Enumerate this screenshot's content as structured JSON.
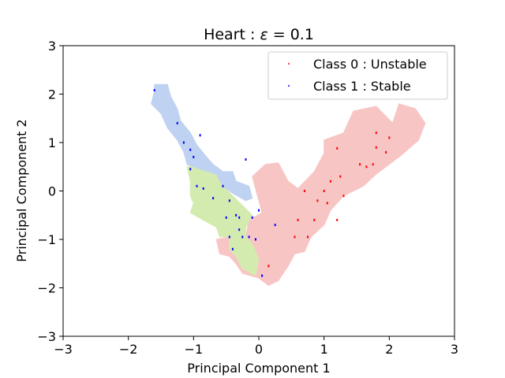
{
  "chart_data": {
    "type": "scatter",
    "title": "Heart : ε = 0.1",
    "title_prefix": "Heart : ",
    "title_symbol": "ε",
    "title_suffix": " = 0.1",
    "xlabel": "Principal Component 1",
    "ylabel": "Principal Component 2",
    "xlim": [
      -3,
      3
    ],
    "ylim": [
      -3,
      3
    ],
    "xticks": [
      -3,
      -2,
      -1,
      0,
      1,
      2,
      3
    ],
    "yticks": [
      -3,
      -2,
      -1,
      0,
      1,
      2,
      3
    ],
    "xtick_labels": [
      "−3",
      "−2",
      "−1",
      "0",
      "1",
      "2",
      "3"
    ],
    "ytick_labels": [
      "−3",
      "−2",
      "−1",
      "0",
      "1",
      "2",
      "3"
    ],
    "grid": false,
    "legend_position": "top-right",
    "series": [
      {
        "name": "Class 0 : Unstable",
        "color": "#ff0000",
        "points": [
          [
            1.2,
            0.88
          ],
          [
            1.65,
            0.5
          ],
          [
            1.8,
            0.9
          ],
          [
            1.95,
            0.8
          ],
          [
            2.0,
            1.1
          ],
          [
            1.75,
            0.55
          ],
          [
            1.25,
            0.3
          ],
          [
            1.1,
            0.2
          ],
          [
            0.85,
            -0.6
          ],
          [
            1.2,
            -0.6
          ],
          [
            1.05,
            -0.25
          ],
          [
            1.0,
            0.0
          ],
          [
            0.6,
            -0.6
          ],
          [
            0.55,
            -0.95
          ],
          [
            0.75,
            -0.95
          ],
          [
            0.15,
            -1.55
          ],
          [
            0.9,
            -0.2
          ],
          [
            1.8,
            1.2
          ],
          [
            1.55,
            0.55
          ],
          [
            0.7,
            0.0
          ],
          [
            1.3,
            -0.1
          ]
        ]
      },
      {
        "name": "Class 1 : Stable",
        "color": "#0000ff",
        "points": [
          [
            -1.6,
            2.08
          ],
          [
            -1.25,
            1.4
          ],
          [
            -1.15,
            1.0
          ],
          [
            -1.05,
            0.85
          ],
          [
            -0.9,
            1.15
          ],
          [
            -1.0,
            0.7
          ],
          [
            -1.05,
            0.45
          ],
          [
            -0.95,
            0.1
          ],
          [
            -0.85,
            0.05
          ],
          [
            -0.7,
            -0.15
          ],
          [
            -0.5,
            -0.55
          ],
          [
            -0.45,
            -0.95
          ],
          [
            -0.3,
            -0.8
          ],
          [
            -0.2,
            0.65
          ],
          [
            -0.15,
            -0.95
          ],
          [
            -0.1,
            -0.55
          ],
          [
            -0.05,
            -1.0
          ],
          [
            0.0,
            -0.4
          ],
          [
            -0.25,
            -0.95
          ],
          [
            0.05,
            -1.75
          ],
          [
            0.25,
            -0.7
          ],
          [
            -0.4,
            -1.2
          ],
          [
            -0.3,
            -0.55
          ],
          [
            -0.55,
            0.1
          ],
          [
            -0.35,
            -0.5
          ],
          [
            -0.45,
            -0.2
          ]
        ]
      }
    ],
    "regions": [
      {
        "label": "Unstable region",
        "color": "#f8c5c5",
        "polygon": [
          [
            0.0,
            -1.8
          ],
          [
            -0.25,
            -1.7
          ],
          [
            -0.35,
            -1.5
          ],
          [
            -0.45,
            -1.35
          ],
          [
            -0.6,
            -1.3
          ],
          [
            -0.65,
            -1.0
          ],
          [
            -0.45,
            -0.95
          ],
          [
            -0.2,
            -0.95
          ],
          [
            -0.15,
            -0.6
          ],
          [
            0.05,
            -0.45
          ],
          [
            0.0,
            -0.2
          ],
          [
            -0.1,
            0.3
          ],
          [
            0.1,
            0.55
          ],
          [
            0.3,
            0.58
          ],
          [
            0.45,
            0.2
          ],
          [
            0.6,
            0.05
          ],
          [
            0.85,
            0.4
          ],
          [
            1.0,
            0.78
          ],
          [
            1.0,
            1.05
          ],
          [
            1.3,
            1.2
          ],
          [
            1.45,
            1.65
          ],
          [
            1.8,
            1.75
          ],
          [
            2.05,
            1.4
          ],
          [
            2.15,
            1.8
          ],
          [
            2.4,
            1.7
          ],
          [
            2.55,
            1.4
          ],
          [
            2.45,
            1.05
          ],
          [
            2.15,
            0.7
          ],
          [
            1.8,
            0.35
          ],
          [
            1.6,
            0.1
          ],
          [
            1.3,
            -0.1
          ],
          [
            1.1,
            -0.4
          ],
          [
            1.0,
            -0.7
          ],
          [
            0.8,
            -0.95
          ],
          [
            0.7,
            -1.25
          ],
          [
            0.55,
            -1.3
          ],
          [
            0.45,
            -1.55
          ],
          [
            0.3,
            -1.85
          ],
          [
            0.15,
            -1.95
          ]
        ]
      },
      {
        "label": "Stable region (green)",
        "color": "#d4ebb0",
        "polygon": [
          [
            -0.05,
            -1.75
          ],
          [
            -0.25,
            -1.6
          ],
          [
            -0.35,
            -1.35
          ],
          [
            -0.45,
            -1.2
          ],
          [
            -0.45,
            -0.95
          ],
          [
            -0.6,
            -0.95
          ],
          [
            -0.65,
            -0.75
          ],
          [
            -0.85,
            -0.6
          ],
          [
            -1.05,
            -0.45
          ],
          [
            -1.0,
            -0.25
          ],
          [
            -1.05,
            -0.1
          ],
          [
            -1.05,
            0.2
          ],
          [
            -1.1,
            0.5
          ],
          [
            -0.9,
            0.55
          ],
          [
            -0.6,
            0.4
          ],
          [
            -0.55,
            0.1
          ],
          [
            -0.4,
            -0.1
          ],
          [
            -0.25,
            -0.3
          ],
          [
            -0.1,
            -0.5
          ],
          [
            -0.2,
            -0.75
          ],
          [
            -0.2,
            -0.95
          ],
          [
            -0.1,
            -1.1
          ],
          [
            0.0,
            -1.4
          ]
        ]
      },
      {
        "label": "Stable region (blue)",
        "color": "#c0d2f2",
        "polygon": [
          [
            -1.6,
            2.2
          ],
          [
            -1.4,
            2.2
          ],
          [
            -1.35,
            1.95
          ],
          [
            -1.25,
            1.7
          ],
          [
            -1.2,
            1.45
          ],
          [
            -1.05,
            1.2
          ],
          [
            -0.95,
            0.95
          ],
          [
            -0.8,
            0.7
          ],
          [
            -0.7,
            0.55
          ],
          [
            -0.55,
            0.4
          ],
          [
            -0.4,
            0.4
          ],
          [
            -0.35,
            0.2
          ],
          [
            -0.15,
            0.1
          ],
          [
            -0.1,
            -0.15
          ],
          [
            -0.2,
            -0.2
          ],
          [
            -0.4,
            -0.05
          ],
          [
            -0.55,
            0.1
          ],
          [
            -0.65,
            0.35
          ],
          [
            -0.9,
            0.45
          ],
          [
            -1.1,
            0.55
          ],
          [
            -1.15,
            0.8
          ],
          [
            -1.25,
            1.05
          ],
          [
            -1.4,
            1.3
          ],
          [
            -1.5,
            1.6
          ],
          [
            -1.65,
            1.8
          ],
          [
            -1.6,
            2.05
          ]
        ]
      }
    ]
  }
}
